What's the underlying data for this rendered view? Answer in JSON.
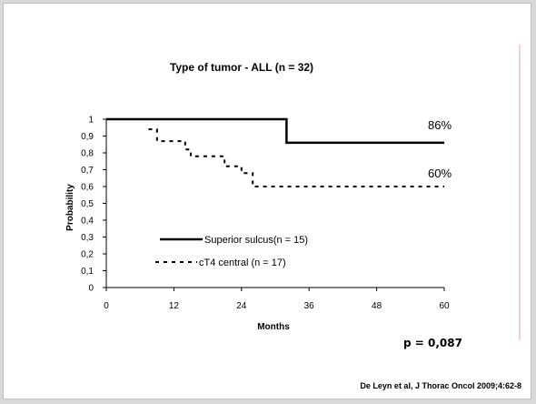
{
  "slide": {
    "source": "De Leyn et al, J Thorac Oncol 2009;4:62-8",
    "p_value": "p = 0,087",
    "accent_line_color": "#e8a0a0"
  },
  "chart_data": {
    "type": "line",
    "title": "Type of tumor - ALL (n = 32)",
    "xlabel": "Months",
    "ylabel": "Probability",
    "xlim": [
      0,
      60
    ],
    "ylim": [
      0,
      1
    ],
    "x_ticks": [
      0,
      12,
      24,
      36,
      48,
      60
    ],
    "x_tick_labels": [
      "0",
      "12",
      "24",
      "36",
      "48",
      "60"
    ],
    "y_ticks": [
      0,
      0.1,
      0.2,
      0.3,
      0.4,
      0.5,
      0.6,
      0.7,
      0.8,
      0.9,
      1
    ],
    "y_tick_labels": [
      "0",
      "0,1",
      "0,2",
      "0,3",
      "0,4",
      "0,5",
      "0,6",
      "0,7",
      "0,8",
      "0,9",
      "1"
    ],
    "grid": false,
    "legend_position": "lower-left",
    "series": [
      {
        "name": "Superior sulcus(n = 15)",
        "style": "solid",
        "color": "#000000",
        "step_x": [
          0,
          32,
          32,
          60
        ],
        "step_y": [
          1,
          1,
          0.86,
          0.86
        ],
        "end_label": "86%"
      },
      {
        "name": "cT4 central (n = 17)",
        "style": "dashed",
        "color": "#000000",
        "step_x": [
          7.5,
          9,
          9,
          14,
          14,
          15,
          15,
          21,
          21,
          24,
          24,
          26,
          26,
          60
        ],
        "step_y": [
          0.94,
          0.94,
          0.87,
          0.87,
          0.82,
          0.82,
          0.78,
          0.78,
          0.72,
          0.72,
          0.68,
          0.68,
          0.6,
          0.6
        ],
        "end_label": "60%"
      }
    ]
  }
}
